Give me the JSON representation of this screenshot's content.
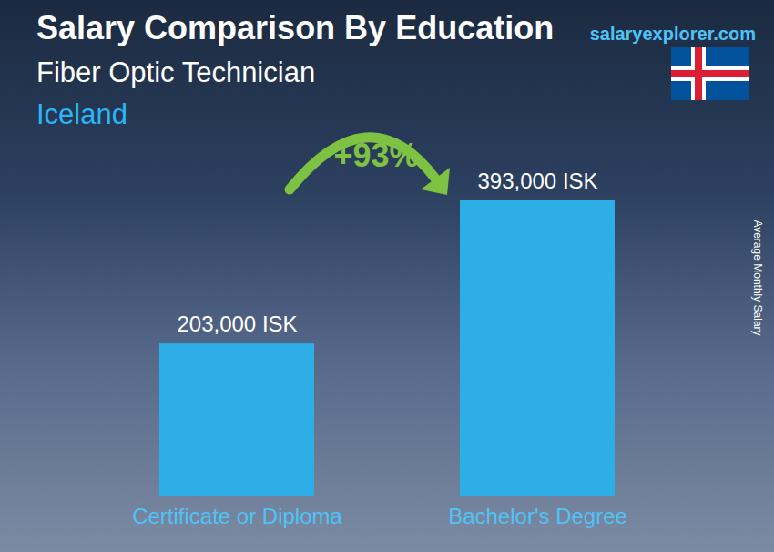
{
  "chart_data": {
    "type": "bar",
    "title": "Salary Comparison By Education",
    "subtitles": [
      "Fiber Optic Technician",
      "Iceland"
    ],
    "watermark": "salaryexplorer.com",
    "y_label": "Average Monthly Salary",
    "annotation": "+93%",
    "categories": [
      "Certificate or Diploma",
      "Bachelor's Degree"
    ],
    "values": [
      203000,
      393000
    ],
    "value_labels": [
      "203,000 ISK",
      "393,000 ISK"
    ],
    "color": "#2eaee6",
    "data_labels": true,
    "tick_labels": "x"
  }
}
